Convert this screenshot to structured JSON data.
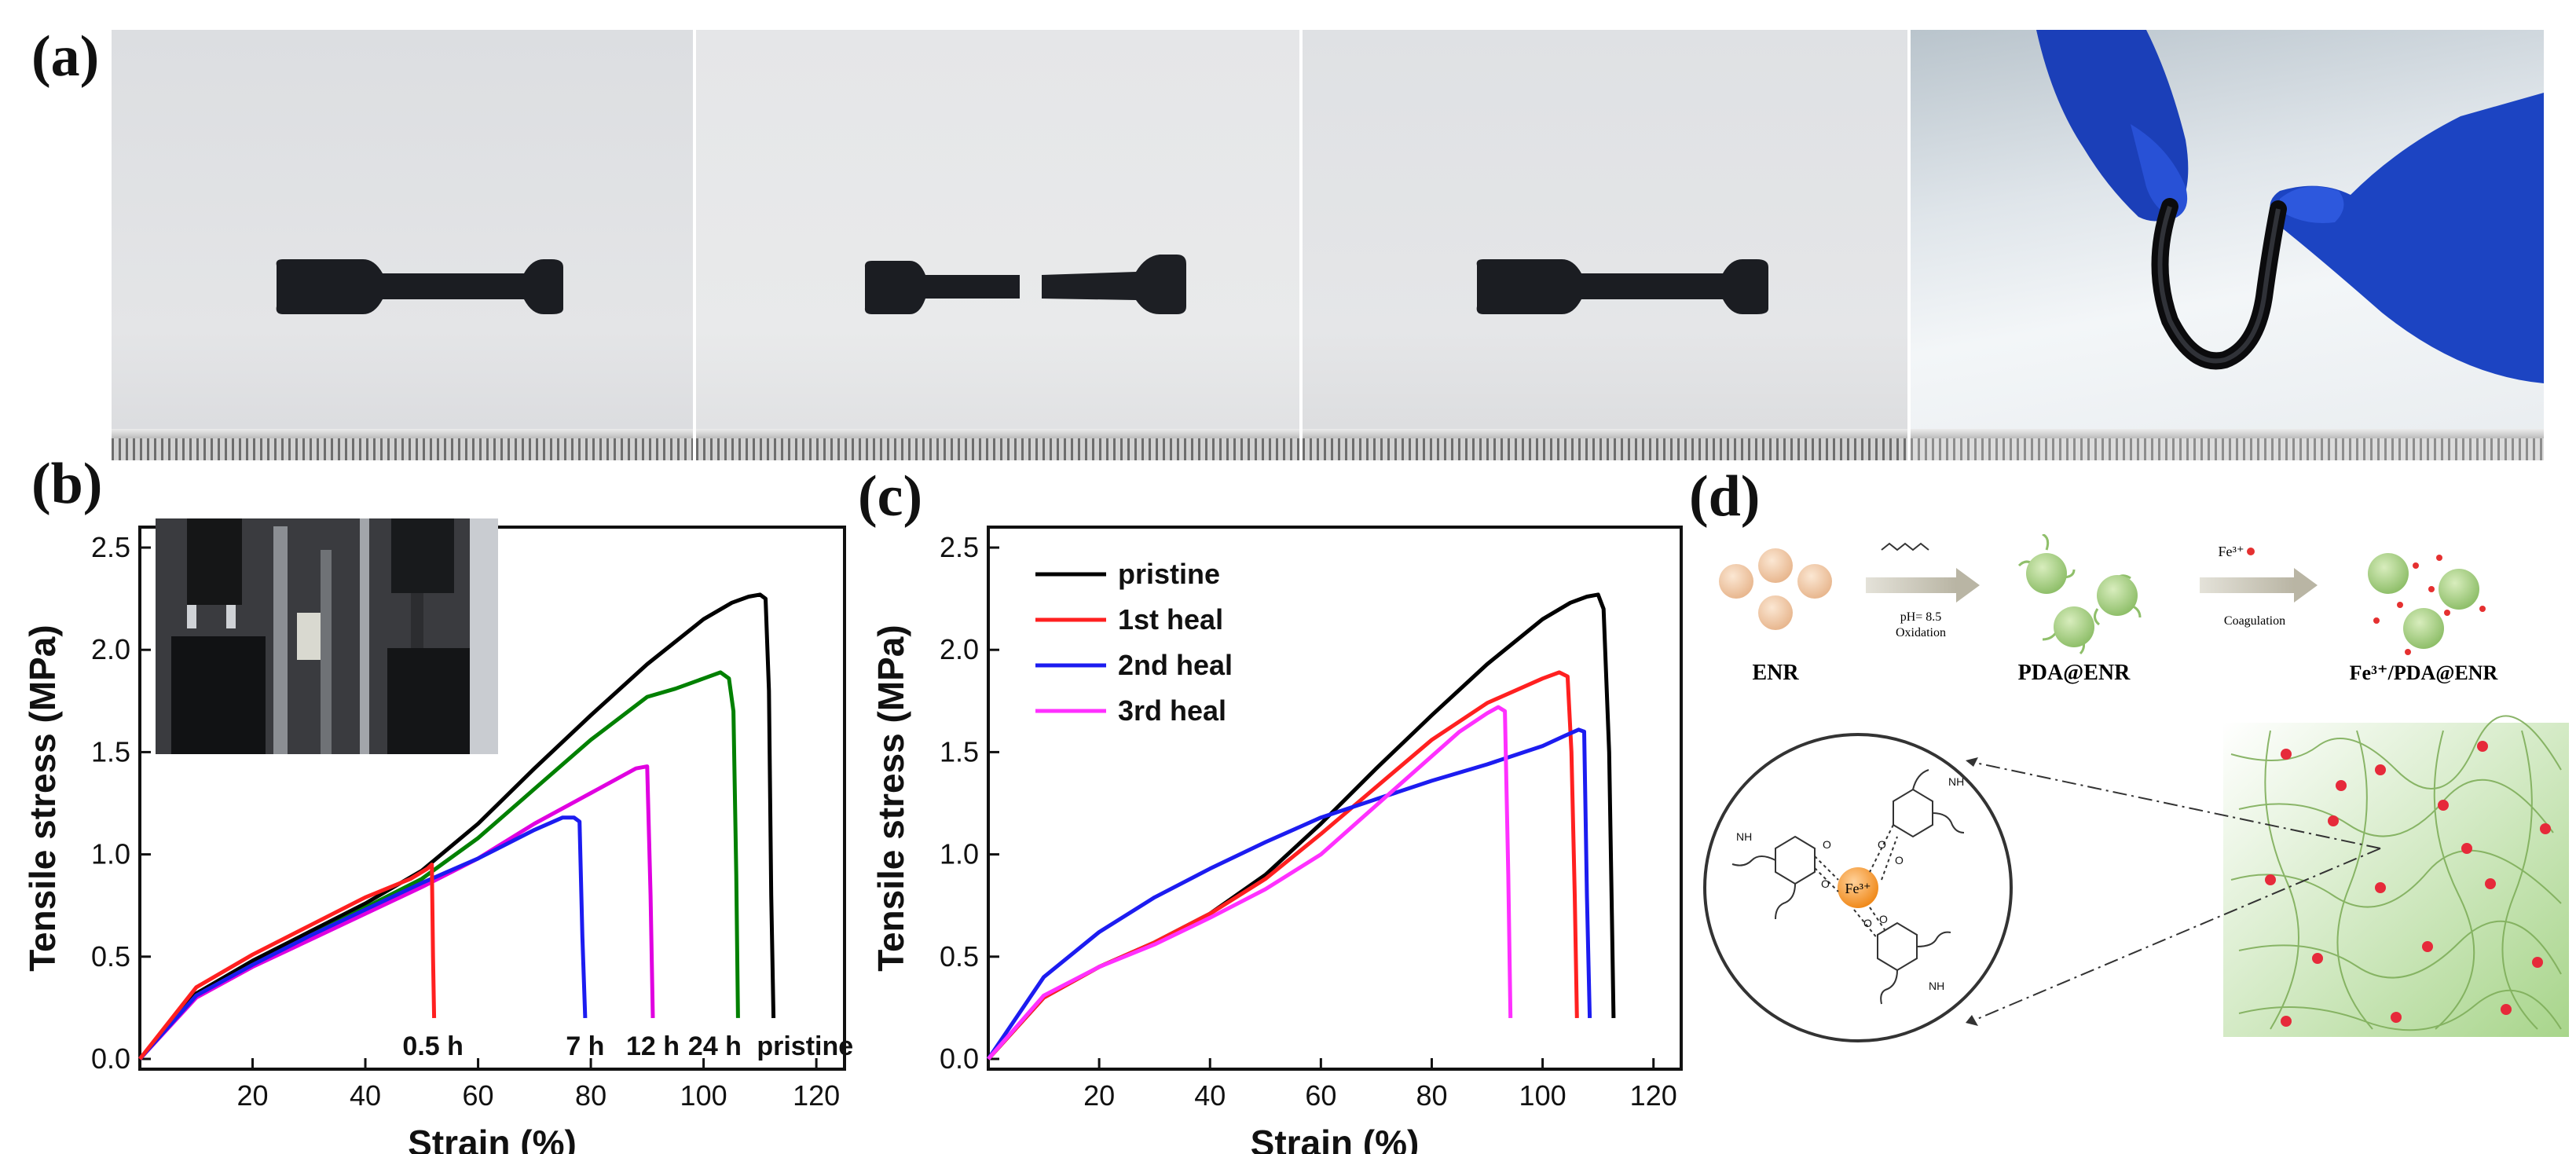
{
  "panels": {
    "a": "(a)",
    "b": "(b)",
    "c": "(c)",
    "d": "(d)"
  },
  "chart_data": [
    {
      "type": "line",
      "panel": "(b)",
      "xlabel": "Strain (%)",
      "ylabel": "Tensile stress (MPa)",
      "xlim": [
        0,
        125
      ],
      "ylim": [
        -0.05,
        2.6
      ],
      "xticks": [
        20,
        40,
        60,
        80,
        100,
        120
      ],
      "yticks": [
        0.0,
        0.5,
        1.0,
        1.5,
        2.0,
        2.5
      ],
      "series": [
        {
          "name": "pristine",
          "color": "#000000",
          "x": [
            0,
            10,
            20,
            30,
            40,
            50,
            60,
            70,
            80,
            90,
            100,
            105,
            108,
            110,
            111,
            111.6,
            112,
            112.4
          ],
          "y": [
            0,
            0.32,
            0.48,
            0.62,
            0.76,
            0.92,
            1.15,
            1.42,
            1.68,
            1.93,
            2.15,
            2.23,
            2.26,
            2.27,
            2.25,
            1.8,
            0.8,
            0.2
          ]
        },
        {
          "name": "24 h",
          "color": "#008000",
          "x": [
            0,
            10,
            20,
            30,
            40,
            50,
            60,
            70,
            80,
            90,
            95,
            100,
            103,
            104.5,
            105.3,
            105.8,
            106.1
          ],
          "y": [
            0,
            0.31,
            0.46,
            0.6,
            0.74,
            0.88,
            1.08,
            1.32,
            1.56,
            1.77,
            1.81,
            1.86,
            1.89,
            1.86,
            1.7,
            0.9,
            0.2
          ]
        },
        {
          "name": "12 h",
          "color": "#e000e0",
          "x": [
            0,
            10,
            20,
            30,
            40,
            50,
            60,
            70,
            80,
            88,
            90,
            90.6,
            91
          ],
          "y": [
            0,
            0.3,
            0.45,
            0.58,
            0.71,
            0.84,
            0.98,
            1.15,
            1.3,
            1.42,
            1.43,
            0.8,
            0.2
          ]
        },
        {
          "name": "7 h",
          "color": "#1c1cf0",
          "x": [
            0,
            10,
            20,
            30,
            40,
            50,
            60,
            70,
            75,
            77,
            78,
            78.5,
            79
          ],
          "y": [
            0,
            0.31,
            0.46,
            0.6,
            0.73,
            0.86,
            0.98,
            1.12,
            1.18,
            1.18,
            1.16,
            0.6,
            0.2
          ]
        },
        {
          "name": "0.5 h",
          "color": "#ff2020",
          "x": [
            0,
            10,
            20,
            30,
            40,
            48,
            51,
            51.8,
            52,
            52.2
          ],
          "y": [
            0,
            0.35,
            0.51,
            0.65,
            0.79,
            0.88,
            0.93,
            0.95,
            0.5,
            0.2
          ]
        }
      ],
      "annotations": [
        "0.5 h",
        "7 h",
        "12 h",
        "24 h",
        "pristine"
      ],
      "legend": "none (labels at fracture points); inset photo top-left"
    },
    {
      "type": "line",
      "panel": "(c)",
      "xlabel": "Strain (%)",
      "ylabel": "Tensile stress (MPa)",
      "xlim": [
        0,
        125
      ],
      "ylim": [
        -0.05,
        2.6
      ],
      "xticks": [
        20,
        40,
        60,
        80,
        100,
        120
      ],
      "yticks": [
        0.0,
        0.5,
        1.0,
        1.5,
        2.0,
        2.5
      ],
      "series": [
        {
          "name": "pristine",
          "color": "#000000",
          "x": [
            0,
            10,
            20,
            30,
            40,
            50,
            60,
            70,
            80,
            90,
            100,
            105,
            108,
            110,
            111,
            112,
            112.5,
            112.8
          ],
          "y": [
            0,
            0.3,
            0.45,
            0.57,
            0.71,
            0.9,
            1.15,
            1.42,
            1.68,
            1.93,
            2.15,
            2.23,
            2.26,
            2.27,
            2.2,
            1.5,
            0.7,
            0.2
          ]
        },
        {
          "name": "1st heal",
          "color": "#ff2020",
          "x": [
            0,
            10,
            20,
            30,
            40,
            50,
            60,
            70,
            80,
            90,
            95,
            100,
            103,
            104.5,
            105.2,
            105.8,
            106.2
          ],
          "y": [
            0,
            0.3,
            0.45,
            0.57,
            0.71,
            0.88,
            1.1,
            1.33,
            1.56,
            1.74,
            1.8,
            1.86,
            1.89,
            1.87,
            1.5,
            0.8,
            0.2
          ]
        },
        {
          "name": "2nd heal",
          "color": "#1c1cf0",
          "x": [
            0,
            10,
            20,
            30,
            40,
            50,
            60,
            70,
            80,
            90,
            100,
            104,
            106.5,
            107.5,
            108,
            108.5
          ],
          "y": [
            0,
            0.4,
            0.62,
            0.79,
            0.93,
            1.06,
            1.18,
            1.27,
            1.36,
            1.44,
            1.53,
            1.58,
            1.61,
            1.6,
            0.8,
            0.2
          ]
        },
        {
          "name": "3rd heal",
          "color": "#ff30ff",
          "x": [
            0,
            10,
            20,
            30,
            40,
            50,
            60,
            70,
            80,
            85,
            90,
            92,
            93.2,
            93.8,
            94.2
          ],
          "y": [
            0,
            0.31,
            0.45,
            0.56,
            0.69,
            0.83,
            1.0,
            1.24,
            1.48,
            1.6,
            1.69,
            1.72,
            1.7,
            0.9,
            0.2
          ]
        }
      ],
      "legend": "top-left"
    }
  ],
  "scheme": {
    "enr_label": "ENR",
    "step1_top": "",
    "step1_bottom": "pH= 8.5\nOxidation",
    "pda_label": "PDA@ENR",
    "step2_top": "Fe³⁺",
    "step2_bottom": "Coagulation",
    "fe_pda_label": "Fe³⁺/PDA@ENR",
    "fe_center": "Fe³⁺",
    "nh": "NH",
    "o": "O"
  }
}
